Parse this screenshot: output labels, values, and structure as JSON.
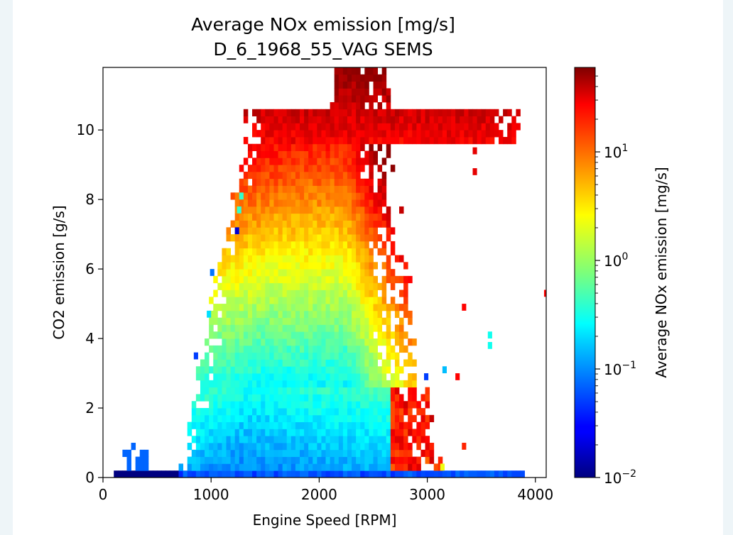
{
  "chart_data": {
    "type": "heatmap",
    "title": "Average NOx emission [mg/s]",
    "subtitle": "D_6_1968_55_VAG SEMS",
    "xlabel": "Engine Speed [RPM]",
    "ylabel": "CO2 emission [g/s]",
    "xlim": [
      0,
      4100
    ],
    "ylim": [
      0,
      11.8
    ],
    "x_ticks": [
      0,
      1000,
      2000,
      3000,
      4000
    ],
    "x_tick_labels": [
      "0",
      "1000",
      "2000",
      "3000",
      "4000"
    ],
    "y_ticks": [
      0,
      2,
      4,
      6,
      8,
      10
    ],
    "y_tick_labels": [
      "0",
      "2",
      "4",
      "6",
      "8",
      "10"
    ],
    "bin_width_rpm": 40,
    "bin_height_gs": 0.2,
    "grid": false,
    "colorbar": {
      "label": "Average NOx emission [mg/s]",
      "scale": "log",
      "colormap": "jet",
      "range": [
        0.01,
        60
      ],
      "ticks": [
        0.01,
        0.1,
        1,
        10
      ],
      "tick_labels": [
        {
          "base": "10",
          "exp": "−2"
        },
        {
          "base": "10",
          "exp": "−1"
        },
        {
          "base": "10",
          "exp": "0"
        },
        {
          "base": "10",
          "exp": "1"
        }
      ]
    },
    "outliers": [
      {
        "x": 4100,
        "y": 5.2,
        "value": 20
      },
      {
        "x": 3580,
        "y": 4.0,
        "value": 0.3
      },
      {
        "x": 3580,
        "y": 3.7,
        "value": 0.3
      },
      {
        "x": 1240,
        "y": 7.0,
        "value": 0.02
      },
      {
        "x": 1260,
        "y": 7.6,
        "value": 0.4
      },
      {
        "x": 1280,
        "y": 8.0,
        "value": 0.4
      },
      {
        "x": 1010,
        "y": 5.8,
        "value": 0.08
      },
      {
        "x": 980,
        "y": 4.6,
        "value": 0.2
      },
      {
        "x": 860,
        "y": 3.4,
        "value": 0.05
      },
      {
        "x": 2990,
        "y": 2.8,
        "value": 0.05
      },
      {
        "x": 3280,
        "y": 2.8,
        "value": 20
      },
      {
        "x": 3340,
        "y": 4.8,
        "value": 20
      },
      {
        "x": 3440,
        "y": 9.3,
        "value": 25
      },
      {
        "x": 3440,
        "y": 8.7,
        "value": 25
      },
      {
        "x": 3160,
        "y": 3.0,
        "value": 0.15
      },
      {
        "x": 3340,
        "y": 0.8,
        "value": 15
      },
      {
        "x": 3140,
        "y": 0.2,
        "value": 2
      }
    ],
    "regions": [
      {
        "xmin": 100,
        "xmax": 700,
        "ymin": 0,
        "ymax": 0.2,
        "value": 0.01
      },
      {
        "xmin": 150,
        "xmax": 400,
        "ymin": 0.2,
        "ymax": 1.0,
        "value": 0.06
      },
      {
        "xmin": 700,
        "xmax": 3100,
        "ymin": 0,
        "ymax": 0.2,
        "value": 0.05
      },
      {
        "xmin": 900,
        "xmax": 2700,
        "ymin": 0.2,
        "ymax": 2.5,
        "value": 0.3
      },
      {
        "xmin": 1000,
        "xmax": 2600,
        "ymin": 2.5,
        "ymax": 5.0,
        "value": 1.5
      },
      {
        "xmin": 1100,
        "xmax": 2500,
        "ymin": 5.0,
        "ymax": 7.5,
        "value": 6
      },
      {
        "xmin": 1300,
        "xmax": 2800,
        "ymin": 7.5,
        "ymax": 9.5,
        "value": 15
      },
      {
        "xmin": 1700,
        "xmax": 3800,
        "ymin": 9.5,
        "ymax": 10.5,
        "value": 22
      },
      {
        "xmin": 2200,
        "xmax": 3000,
        "ymin": 10.5,
        "ymax": 11.8,
        "value": 45
      },
      {
        "xmin": 2600,
        "xmax": 3300,
        "ymin": 0,
        "ymax": 2.5,
        "value": 12
      }
    ]
  }
}
